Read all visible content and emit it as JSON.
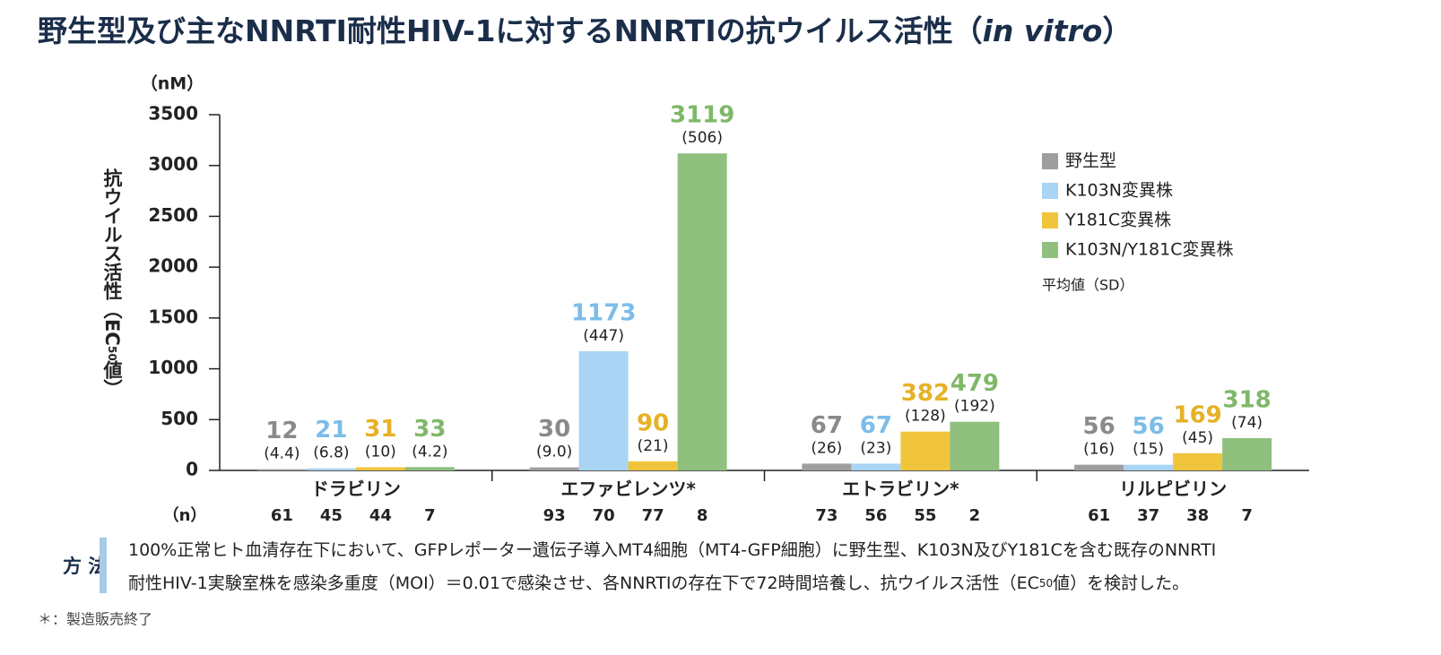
{
  "chart_data": {
    "type": "bar",
    "title_parts": [
      "野生型及び主なNNRTI耐性HIV-1に対するNNRTIの抗ウイルス活性（",
      "in vitro",
      "）"
    ],
    "y_unit": "（nM）",
    "y_label_parts": [
      "抗ウイルス活性（EC",
      "50",
      "値）"
    ],
    "categories": [
      "ドラビリン",
      "エファビレンツ*",
      "エトラビリン*",
      "リルピビリン"
    ],
    "n_label": "（n）",
    "series": [
      {
        "name": "野生型",
        "color": "#9e9e9e",
        "label_color": "#8a8a8a",
        "values": [
          12,
          30,
          67,
          56
        ],
        "sd_labels": [
          "(4.4)",
          "(9.0)",
          "(26)",
          "(16)"
        ],
        "n": [
          61,
          93,
          73,
          61
        ]
      },
      {
        "name": "K103N変異株",
        "color": "#a9d4f3",
        "label_color": "#7cbde9",
        "values": [
          21,
          1173,
          67,
          56
        ],
        "sd_labels": [
          "(6.8)",
          "(447)",
          "(23)",
          "(15)"
        ],
        "n": [
          45,
          70,
          56,
          37
        ]
      },
      {
        "name": "Y181C変異株",
        "color": "#f0c53c",
        "label_color": "#e6b126",
        "values": [
          31,
          90,
          382,
          169
        ],
        "sd_labels": [
          "(10)",
          "(21)",
          "(128)",
          "(45)"
        ],
        "n": [
          44,
          77,
          55,
          38
        ]
      },
      {
        "name": "K103N/Y181C変異株",
        "color": "#8fc07e",
        "label_color": "#7fb86a",
        "values": [
          33,
          3119,
          479,
          318
        ],
        "sd_labels": [
          "(4.2)",
          "(506)",
          "(192)",
          "(74)"
        ],
        "n": [
          7,
          8,
          2,
          7
        ]
      }
    ],
    "legend_note": "平均値（SD）",
    "ylim": [
      0,
      3500
    ],
    "yticks": [
      0,
      500,
      1000,
      1500,
      2000,
      2500,
      3000,
      3500
    ],
    "grid": false,
    "legend_position": "upper right"
  },
  "method": {
    "label": "方 法",
    "lines": [
      [
        "100%正常ヒト血清存在下において、GFPレポーター遺伝子導入MT4細胞（MT4-GFP細胞）に野生型、K103N及びY181Cを含む既存のNNRTI"
      ],
      [
        "耐性HIV-1実験室株を感染多重度（MOI）＝0.01で感染させ、各NNRTIの存在下で72時間培養し、抗ウイルス活性（EC",
        "50",
        "値）を検討した。"
      ]
    ]
  },
  "footnote": "＊：製造販売終了"
}
